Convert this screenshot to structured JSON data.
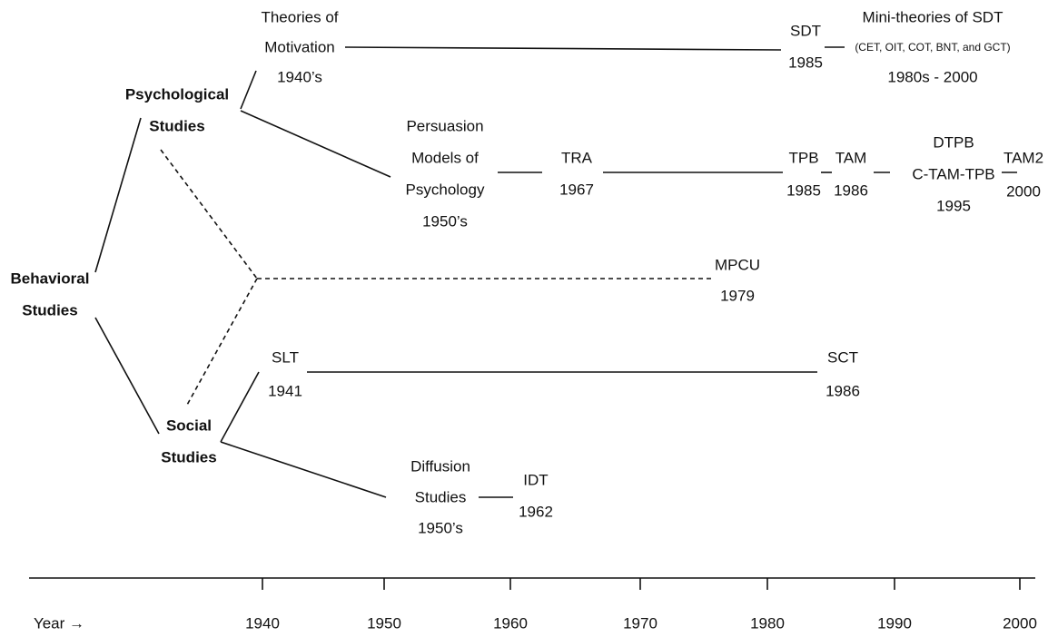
{
  "nodes": [
    {
      "lines": [
        "Behavioral",
        "Studies"
      ]
    },
    {
      "lines": [
        "Psychological",
        "Studies"
      ]
    },
    {
      "lines": [
        "Social",
        "Studies"
      ]
    },
    {
      "lines": [
        "Theories of",
        "Motivation",
        "1940’s"
      ]
    },
    {
      "lines": [
        "SDT",
        "1985"
      ]
    },
    {
      "lines": [
        "Mini-theories of SDT",
        "(CET, OIT, COT, BNT, and GCT)",
        "1980s - 2000"
      ]
    },
    {
      "lines": [
        "Persuasion",
        "Models of",
        "Psychology",
        "1950’s"
      ]
    },
    {
      "lines": [
        "TRA",
        "1967"
      ]
    },
    {
      "lines": [
        "TPB",
        "1985"
      ]
    },
    {
      "lines": [
        "TAM",
        "1986"
      ]
    },
    {
      "lines": [
        "DTPB",
        "C-TAM-TPB",
        "1995"
      ]
    },
    {
      "lines": [
        "TAM2",
        "2000"
      ]
    },
    {
      "lines": [
        "MPCU",
        "1979"
      ]
    },
    {
      "lines": [
        "SLT",
        "1941"
      ]
    },
    {
      "lines": [
        "SCT",
        "1986"
      ]
    },
    {
      "lines": [
        "Diffusion",
        "Studies",
        "1950’s"
      ]
    },
    {
      "lines": [
        "IDT",
        "1962"
      ]
    }
  ],
  "axis": {
    "label": "Year →",
    "ticks": [
      "1940",
      "1950",
      "1960",
      "1970",
      "1980",
      "1990",
      "2000"
    ]
  }
}
